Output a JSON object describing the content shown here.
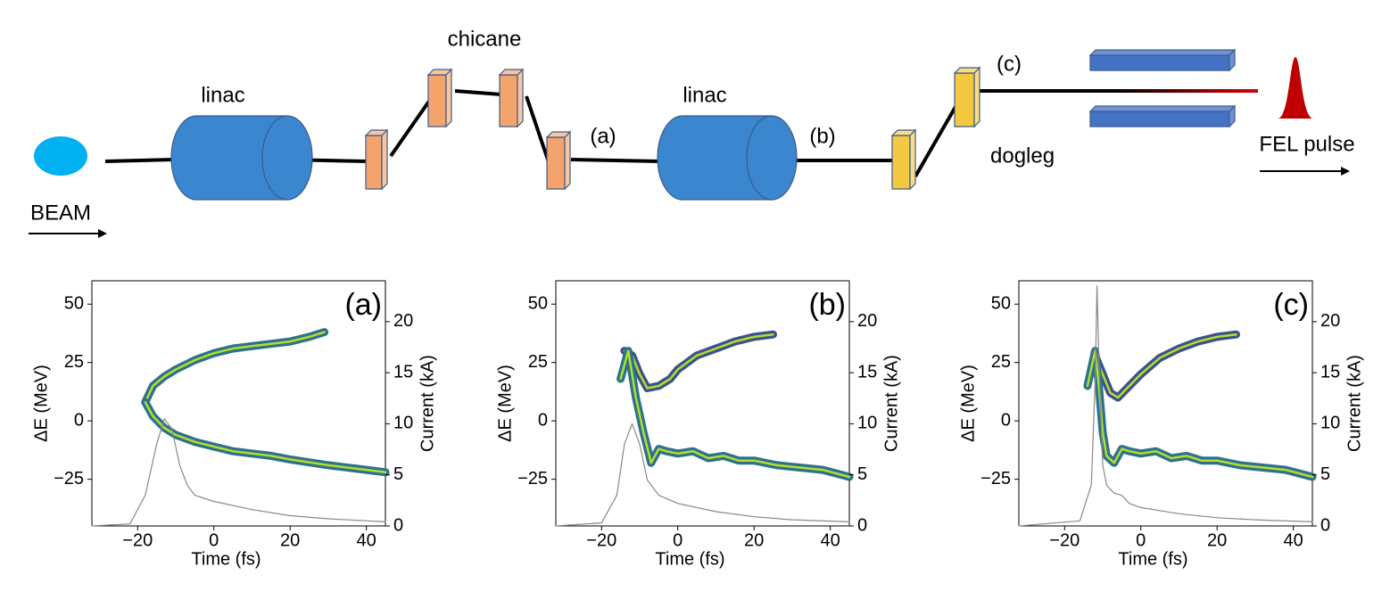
{
  "diagram": {
    "beam": "BEAM",
    "linac_1": "linac",
    "chicane": "chicane",
    "point_a": "(a)",
    "linac_2": "linac",
    "point_b": "(b)",
    "dogleg": "dogleg",
    "point_c": "(c)",
    "fel_pulse": "FEL pulse"
  },
  "chart_data": [
    {
      "type": "line",
      "label": "(a)",
      "xlabel": "Time (fs)",
      "ylabel": "ΔE (MeV)",
      "y2label": "Current (kA)",
      "xlim": [
        -32,
        45
      ],
      "xticks": [
        {
          "value": -20,
          "label": "−20"
        },
        0,
        20,
        40
      ],
      "ylim": [
        -45,
        60
      ],
      "yticks": [
        {
          "value": -25,
          "label": "−25"
        },
        0,
        25,
        50
      ],
      "y2lim": [
        0,
        24
      ],
      "y2ticks": [
        0,
        5,
        10,
        15,
        20
      ],
      "series": [
        {
          "color": "#2c728e",
          "x": [
            -18,
            -16,
            -13,
            -10,
            -5,
            0,
            5,
            10,
            15,
            20,
            25,
            29
          ],
          "values": [
            8,
            15,
            19,
            22,
            26,
            29,
            31,
            32,
            33,
            34,
            36,
            38
          ]
        },
        {
          "color": "#2c728e",
          "x": [
            -18,
            -16,
            -13,
            -10,
            -5,
            0,
            5,
            10,
            15,
            20,
            30,
            40,
            45
          ],
          "values": [
            8,
            2,
            -3,
            -6,
            -9,
            -11,
            -13,
            -14,
            -15,
            -16.5,
            -19,
            -21,
            -22
          ]
        },
        {
          "color": "#888888",
          "axis": "y2",
          "x": [
            -32,
            -22,
            -18,
            -15,
            -13,
            -11,
            -9,
            -7,
            -5,
            0,
            5,
            10,
            20,
            30,
            45
          ],
          "values": [
            0,
            0.2,
            3,
            8,
            10.5,
            9.5,
            6,
            4,
            3,
            2.4,
            2,
            1.6,
            1,
            0.7,
            0.4
          ]
        }
      ]
    },
    {
      "type": "line",
      "label": "(b)",
      "xlabel": "Time (fs)",
      "ylabel": "ΔE (MeV)",
      "y2label": "Current (kA)",
      "xlim": [
        -32,
        45
      ],
      "xticks": [
        {
          "value": -20,
          "label": "−20"
        },
        0,
        20,
        40
      ],
      "ylim": [
        -45,
        60
      ],
      "yticks": [
        {
          "value": -25,
          "label": "−25"
        },
        0,
        25,
        50
      ],
      "y2lim": [
        0,
        24
      ],
      "y2ticks": [
        0,
        5,
        10,
        15,
        20
      ],
      "series": [
        {
          "color": "#3b528b",
          "x": [
            -14,
            -12,
            -10,
            -8,
            -5,
            -2,
            0,
            5,
            10,
            15,
            20,
            25
          ],
          "values": [
            30,
            28,
            20,
            14,
            15,
            18,
            22,
            28,
            31,
            34,
            36,
            37
          ]
        },
        {
          "color": "#2c728e",
          "x": [
            -15,
            -13,
            -11,
            -9,
            -7,
            -5,
            -3,
            0,
            4,
            8,
            12,
            16,
            20,
            26,
            32,
            38,
            45
          ],
          "values": [
            18,
            30,
            10,
            -5,
            -18,
            -12,
            -13,
            -14,
            -13,
            -16,
            -15,
            -17,
            -17,
            -19,
            -20,
            -21,
            -24
          ]
        },
        {
          "color": "#888888",
          "axis": "y2",
          "x": [
            -32,
            -20,
            -16,
            -14,
            -12,
            -10,
            -8,
            -5,
            0,
            5,
            10,
            20,
            30,
            45
          ],
          "values": [
            0,
            0.3,
            3,
            8,
            10,
            8,
            4.5,
            3,
            2.2,
            1.8,
            1.4,
            0.9,
            0.6,
            0.4
          ]
        }
      ]
    },
    {
      "type": "line",
      "label": "(c)",
      "xlabel": "Time (fs)",
      "ylabel": "ΔE (MeV)",
      "y2label": "Current (kA)",
      "xlim": [
        -32,
        45
      ],
      "xticks": [
        {
          "value": -20,
          "label": "−20"
        },
        0,
        20,
        40
      ],
      "ylim": [
        -45,
        60
      ],
      "yticks": [
        {
          "value": -25,
          "label": "−25"
        },
        0,
        25,
        50
      ],
      "y2lim": [
        0,
        24
      ],
      "y2ticks": [
        0,
        5,
        10,
        15,
        20
      ],
      "series": [
        {
          "color": "#3b528b",
          "x": [
            -12,
            -10,
            -8,
            -6,
            -3,
            0,
            5,
            10,
            15,
            20,
            25
          ],
          "values": [
            28,
            20,
            12,
            10,
            15,
            20,
            27,
            31,
            34,
            36,
            37
          ]
        },
        {
          "color": "#2c728e",
          "x": [
            -14,
            -12,
            -11,
            -10,
            -9,
            -7,
            -5,
            -3,
            0,
            4,
            8,
            12,
            16,
            20,
            26,
            32,
            38,
            45
          ],
          "values": [
            15,
            30,
            15,
            -5,
            -15,
            -18,
            -12,
            -13,
            -14,
            -13,
            -16,
            -15,
            -17,
            -17,
            -19,
            -20,
            -21,
            -24
          ]
        },
        {
          "color": "#888888",
          "axis": "y2",
          "x": [
            -32,
            -16,
            -13,
            -12,
            -11.5,
            -11,
            -10,
            -9,
            -7,
            -5,
            -3,
            0,
            5,
            10,
            20,
            30,
            45
          ],
          "values": [
            0,
            0.5,
            4,
            14,
            23.5,
            16,
            6,
            4,
            3.2,
            3,
            2.2,
            1.8,
            1.5,
            1.2,
            0.8,
            0.6,
            0.4
          ]
        }
      ]
    }
  ]
}
